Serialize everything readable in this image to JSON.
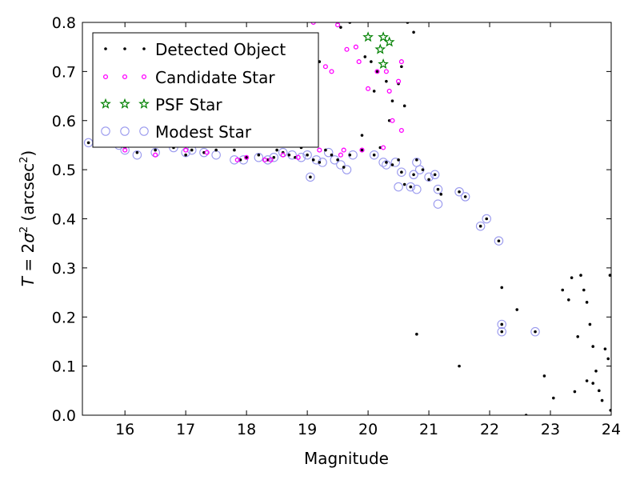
{
  "chart_data": {
    "type": "scatter",
    "xlabel": "Magnitude",
    "ylabel_main": "T",
    "ylabel_eq": " = 2",
    "ylabel_sigma": "σ",
    "ylabel_sup": "2",
    "ylabel_unit": " (arcsec",
    "ylabel_unit_sup": "2",
    "ylabel_close": ")",
    "xlim": [
      15.3,
      24.0
    ],
    "ylim": [
      0.0,
      0.8
    ],
    "xticks": [
      16,
      17,
      18,
      19,
      20,
      21,
      22,
      23,
      24
    ],
    "yticks": [
      0.0,
      0.1,
      0.2,
      0.3,
      0.4,
      0.5,
      0.6,
      0.7,
      0.8
    ],
    "ytick_labels": [
      "0.0",
      "0.1",
      "0.2",
      "0.3",
      "0.4",
      "0.5",
      "0.6",
      "0.7",
      "0.8"
    ],
    "legend_position": "top-left",
    "legend": [
      {
        "name": "Detected Object",
        "marker": "dot",
        "color": "#000000"
      },
      {
        "name": "Candidate Star",
        "marker": "ring",
        "color": "#ff00ff"
      },
      {
        "name": "PSF Star",
        "marker": "star",
        "color": "#008000"
      },
      {
        "name": "Modest Star",
        "marker": "circle",
        "color": "#9999ee"
      }
    ],
    "series": [
      {
        "name": "Detected Object",
        "color": "#000000",
        "points": [
          [
            15.4,
            0.555
          ],
          [
            15.9,
            0.55
          ],
          [
            16.0,
            0.545
          ],
          [
            16.2,
            0.535
          ],
          [
            16.5,
            0.54
          ],
          [
            16.8,
            0.545
          ],
          [
            17.0,
            0.53
          ],
          [
            17.1,
            0.54
          ],
          [
            17.3,
            0.535
          ],
          [
            17.5,
            0.54
          ],
          [
            17.8,
            0.54
          ],
          [
            17.9,
            0.52
          ],
          [
            18.0,
            0.525
          ],
          [
            18.2,
            0.53
          ],
          [
            18.35,
            0.52
          ],
          [
            18.45,
            0.525
          ],
          [
            18.5,
            0.54
          ],
          [
            18.6,
            0.535
          ],
          [
            18.7,
            0.53
          ],
          [
            18.8,
            0.525
          ],
          [
            18.9,
            0.545
          ],
          [
            19.0,
            0.53
          ],
          [
            19.05,
            0.485
          ],
          [
            19.1,
            0.52
          ],
          [
            19.2,
            0.515
          ],
          [
            19.3,
            0.54
          ],
          [
            19.4,
            0.53
          ],
          [
            19.5,
            0.52
          ],
          [
            19.6,
            0.505
          ],
          [
            19.7,
            0.53
          ],
          [
            19.9,
            0.54
          ],
          [
            20.1,
            0.53
          ],
          [
            20.2,
            0.545
          ],
          [
            20.3,
            0.515
          ],
          [
            20.4,
            0.51
          ],
          [
            20.5,
            0.52
          ],
          [
            20.55,
            0.495
          ],
          [
            20.6,
            0.47
          ],
          [
            20.7,
            0.465
          ],
          [
            20.75,
            0.49
          ],
          [
            20.8,
            0.52
          ],
          [
            20.9,
            0.5
          ],
          [
            21.0,
            0.48
          ],
          [
            21.1,
            0.49
          ],
          [
            21.15,
            0.46
          ],
          [
            21.2,
            0.45
          ],
          [
            21.5,
            0.455
          ],
          [
            21.6,
            0.445
          ],
          [
            21.85,
            0.385
          ],
          [
            21.95,
            0.4
          ],
          [
            22.15,
            0.355
          ],
          [
            22.2,
            0.185
          ],
          [
            22.2,
            0.17
          ],
          [
            22.75,
            0.17
          ],
          [
            20.8,
            0.165
          ],
          [
            21.5,
            0.1
          ],
          [
            22.2,
            0.26
          ],
          [
            22.45,
            0.215
          ],
          [
            22.9,
            0.08
          ],
          [
            23.05,
            0.035
          ],
          [
            22.6,
            0.0
          ],
          [
            23.4,
            0.048
          ],
          [
            23.45,
            0.16
          ],
          [
            23.5,
            0.285
          ],
          [
            23.55,
            0.255
          ],
          [
            23.6,
            0.23
          ],
          [
            23.65,
            0.185
          ],
          [
            23.7,
            0.14
          ],
          [
            23.75,
            0.09
          ],
          [
            23.8,
            0.05
          ],
          [
            23.9,
            0.135
          ],
          [
            23.95,
            0.115
          ],
          [
            23.98,
            0.285
          ],
          [
            23.99,
            0.01
          ],
          [
            23.85,
            0.03
          ],
          [
            23.7,
            0.065
          ],
          [
            23.6,
            0.07
          ],
          [
            23.35,
            0.28
          ],
          [
            23.3,
            0.235
          ],
          [
            23.2,
            0.255
          ],
          [
            19.5,
            0.8
          ],
          [
            19.55,
            0.79
          ],
          [
            19.7,
            0.8
          ],
          [
            19.95,
            0.73
          ],
          [
            20.05,
            0.72
          ],
          [
            20.1,
            0.66
          ],
          [
            20.15,
            0.7
          ],
          [
            20.3,
            0.68
          ],
          [
            20.35,
            0.6
          ],
          [
            20.4,
            0.64
          ],
          [
            20.5,
            0.675
          ],
          [
            20.55,
            0.71
          ],
          [
            20.6,
            0.63
          ],
          [
            19.15,
            0.66
          ],
          [
            19.9,
            0.57
          ],
          [
            19.2,
            0.72
          ],
          [
            20.65,
            0.8
          ],
          [
            20.75,
            0.78
          ]
        ]
      },
      {
        "name": "Candidate Star",
        "color": "#ff00ff",
        "points": [
          [
            16.0,
            0.54
          ],
          [
            16.5,
            0.53
          ],
          [
            17.0,
            0.54
          ],
          [
            17.35,
            0.535
          ],
          [
            17.85,
            0.52
          ],
          [
            18.0,
            0.525
          ],
          [
            18.3,
            0.52
          ],
          [
            18.4,
            0.52
          ],
          [
            18.6,
            0.53
          ],
          [
            18.85,
            0.525
          ],
          [
            19.2,
            0.54
          ],
          [
            19.55,
            0.53
          ],
          [
            19.6,
            0.54
          ],
          [
            19.9,
            0.54
          ],
          [
            20.25,
            0.545
          ],
          [
            19.3,
            0.71
          ],
          [
            19.4,
            0.7
          ],
          [
            19.65,
            0.745
          ],
          [
            19.8,
            0.75
          ],
          [
            19.85,
            0.72
          ],
          [
            20.0,
            0.665
          ],
          [
            20.15,
            0.7
          ],
          [
            20.3,
            0.7
          ],
          [
            20.35,
            0.66
          ],
          [
            20.4,
            0.6
          ],
          [
            20.5,
            0.68
          ],
          [
            20.55,
            0.72
          ],
          [
            19.1,
            0.8
          ],
          [
            19.5,
            0.795
          ],
          [
            20.55,
            0.58
          ]
        ]
      },
      {
        "name": "PSF Star",
        "color": "#008000",
        "points": [
          [
            20.0,
            0.77
          ],
          [
            20.25,
            0.77
          ],
          [
            20.35,
            0.76
          ],
          [
            20.2,
            0.745
          ],
          [
            20.25,
            0.715
          ]
        ]
      },
      {
        "name": "Modest Star",
        "color": "#9999ee",
        "points": [
          [
            15.4,
            0.555
          ],
          [
            15.9,
            0.55
          ],
          [
            16.0,
            0.54
          ],
          [
            16.2,
            0.53
          ],
          [
            16.5,
            0.535
          ],
          [
            16.8,
            0.545
          ],
          [
            17.0,
            0.535
          ],
          [
            17.1,
            0.54
          ],
          [
            17.3,
            0.535
          ],
          [
            17.5,
            0.53
          ],
          [
            17.8,
            0.52
          ],
          [
            17.95,
            0.52
          ],
          [
            18.2,
            0.525
          ],
          [
            18.35,
            0.52
          ],
          [
            18.45,
            0.525
          ],
          [
            18.6,
            0.535
          ],
          [
            18.75,
            0.53
          ],
          [
            18.9,
            0.525
          ],
          [
            19.0,
            0.53
          ],
          [
            19.05,
            0.485
          ],
          [
            19.15,
            0.52
          ],
          [
            19.25,
            0.515
          ],
          [
            19.35,
            0.535
          ],
          [
            19.45,
            0.52
          ],
          [
            19.55,
            0.51
          ],
          [
            19.65,
            0.5
          ],
          [
            19.75,
            0.53
          ],
          [
            20.1,
            0.53
          ],
          [
            20.25,
            0.515
          ],
          [
            20.3,
            0.51
          ],
          [
            20.45,
            0.515
          ],
          [
            20.5,
            0.465
          ],
          [
            20.55,
            0.495
          ],
          [
            20.7,
            0.465
          ],
          [
            20.75,
            0.49
          ],
          [
            20.8,
            0.515
          ],
          [
            20.85,
            0.5
          ],
          [
            20.8,
            0.46
          ],
          [
            21.0,
            0.485
          ],
          [
            21.1,
            0.49
          ],
          [
            21.15,
            0.46
          ],
          [
            21.15,
            0.43
          ],
          [
            21.5,
            0.455
          ],
          [
            21.6,
            0.445
          ],
          [
            21.85,
            0.385
          ],
          [
            21.95,
            0.4
          ],
          [
            22.15,
            0.355
          ],
          [
            22.2,
            0.185
          ],
          [
            22.2,
            0.17
          ],
          [
            22.75,
            0.17
          ]
        ]
      }
    ]
  }
}
